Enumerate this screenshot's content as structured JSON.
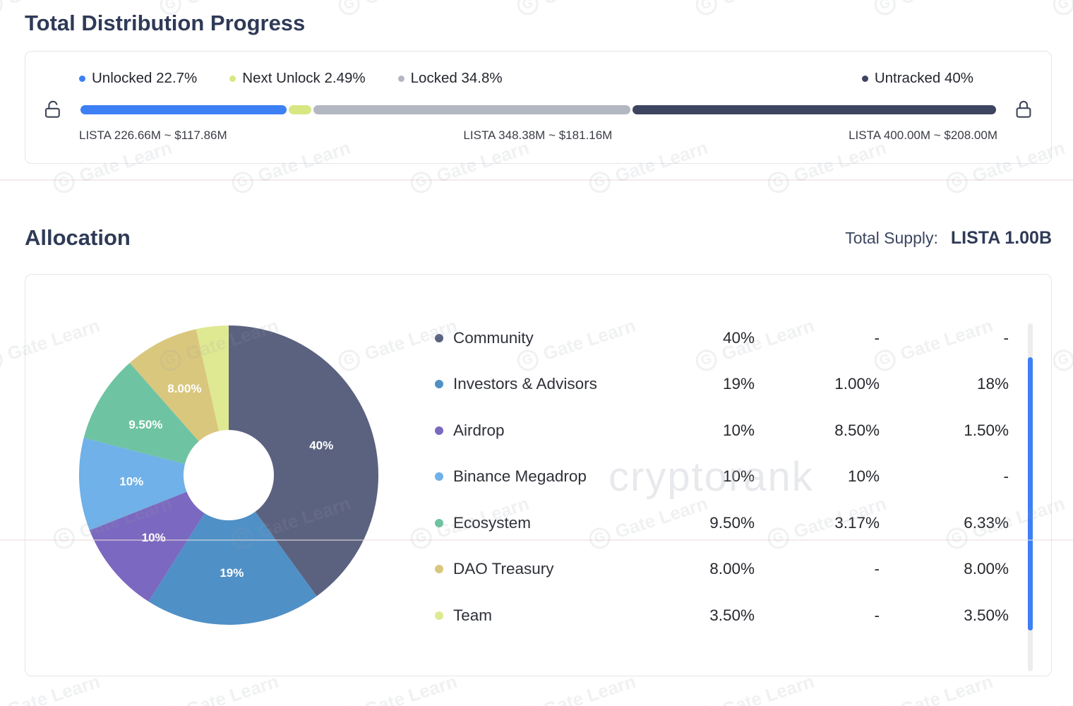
{
  "page": {
    "watermark_text": "Gate Learn",
    "center_watermark": "cryptorank"
  },
  "distribution": {
    "title": "Total Distribution Progress",
    "legend": [
      {
        "label": "Unlocked",
        "value": "22.7%",
        "color": "#3d7ff5"
      },
      {
        "label": "Next Unlock",
        "value": "2.49%",
        "color": "#d9e783"
      },
      {
        "label": "Locked",
        "value": "34.8%",
        "color": "#b2b7c1"
      },
      {
        "label": "Untracked",
        "value": "40%",
        "color": "#3d445f"
      }
    ],
    "milestones": [
      "LISTA 226.66M ~ $117.86M",
      "LISTA 348.38M ~ $181.16M",
      "LISTA 400.00M ~ $208.00M"
    ]
  },
  "allocation": {
    "title": "Allocation",
    "total_supply_label": "Total Supply:",
    "total_supply_value": "LISTA 1.00B",
    "rows": [
      {
        "name": "Community",
        "color": "#5b6280",
        "values": [
          "40%",
          "-",
          "-"
        ],
        "slice_label": "40%"
      },
      {
        "name": "Investors & Advisors",
        "color": "#4f90c6",
        "values": [
          "19%",
          "1.00%",
          "18%"
        ],
        "slice_label": "19%"
      },
      {
        "name": "Airdrop",
        "color": "#7b68c0",
        "values": [
          "10%",
          "8.50%",
          "1.50%"
        ],
        "slice_label": "10%"
      },
      {
        "name": "Binance Megadrop",
        "color": "#6fb1e8",
        "values": [
          "10%",
          "10%",
          "-"
        ],
        "slice_label": "10%"
      },
      {
        "name": "Ecosystem",
        "color": "#6ec3a3",
        "values": [
          "9.50%",
          "3.17%",
          "6.33%"
        ],
        "slice_label": "9.50%"
      },
      {
        "name": "DAO Treasury",
        "color": "#d9c77e",
        "values": [
          "8.00%",
          "-",
          "8.00%"
        ],
        "slice_label": "8.00%"
      },
      {
        "name": "Team",
        "color": "#dfe992",
        "values": [
          "3.50%",
          "-",
          "3.50%"
        ],
        "slice_label": ""
      }
    ]
  },
  "chart_data": [
    {
      "type": "bar",
      "subtype": "stacked-progress",
      "title": "Total Distribution Progress",
      "categories": [
        "Unlocked",
        "Next Unlock",
        "Locked",
        "Untracked"
      ],
      "values": [
        22.7,
        2.49,
        34.8,
        40.0
      ],
      "unit": "%",
      "colors": [
        "#3d7ff5",
        "#d9e783",
        "#b2b7c1",
        "#3d445f"
      ],
      "annotations": [
        "LISTA 226.66M ~ $117.86M",
        "LISTA 348.38M ~ $181.16M",
        "LISTA 400.00M ~ $208.00M"
      ]
    },
    {
      "type": "pie",
      "subtype": "donut",
      "title": "Allocation",
      "categories": [
        "Community",
        "Investors & Advisors",
        "Airdrop",
        "Binance Megadrop",
        "Ecosystem",
        "DAO Treasury",
        "Team"
      ],
      "values": [
        40,
        19,
        10,
        10,
        9.5,
        8,
        3.5
      ],
      "colors": [
        "#5b6280",
        "#4f90c6",
        "#7b68c0",
        "#6fb1e8",
        "#6ec3a3",
        "#d9c77e",
        "#dfe992"
      ],
      "slice_labels": [
        "40%",
        "19%",
        "10%",
        "10%",
        "9.50%",
        "8.00%",
        ""
      ],
      "legend_position": "right",
      "start_angle_deg": 0,
      "total_supply": "LISTA 1.00B"
    }
  ]
}
